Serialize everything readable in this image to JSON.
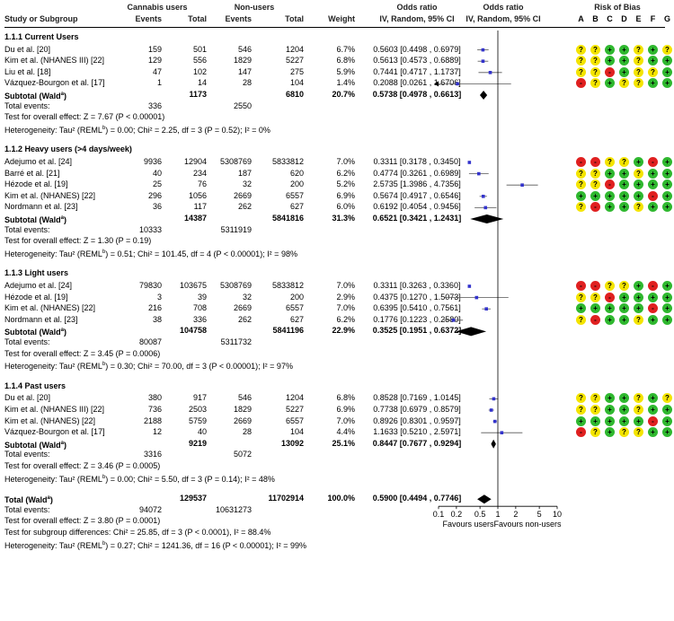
{
  "header": {
    "group_cannabis": "Cannabis users",
    "group_non": "Non-users",
    "col_study": "Study or Subgroup",
    "col_events1": "Events",
    "col_total1": "Total",
    "col_events2": "Events",
    "col_total2": "Total",
    "col_weight": "Weight",
    "col_or": "Odds ratio",
    "col_or_sub": "IV, Random, 95% CI",
    "col_forest": "Odds ratio",
    "col_forest_sub": "IV, Random, 95% CI",
    "col_rob": "Risk of Bias",
    "rob_letters": [
      "A",
      "B",
      "C",
      "D",
      "E",
      "F",
      "G"
    ]
  },
  "colors": {
    "point": "#3333cc",
    "yellow": "#f4e400",
    "green": "#2fb82f",
    "red": "#e02020"
  },
  "chart_data": {
    "type": "forest",
    "axis": {
      "scale": "log",
      "xlim": [
        0.1,
        10
      ],
      "ticks": [
        "0.1",
        "0.2",
        "0.5",
        "1",
        "2",
        "5",
        "10"
      ],
      "tick_values": [
        0.1,
        0.2,
        0.5,
        1,
        2,
        5,
        10
      ],
      "label_left": "Favours users",
      "label_right": "Favours non-users"
    },
    "groups": [
      {
        "title": "1.1.1 Current Users",
        "studies": [
          {
            "name": "Du et al. [20]",
            "e1": "159",
            "t1": "501",
            "e2": "546",
            "t2": "1204",
            "weight": "6.7%",
            "ci_text": "0.5603 [0.4498 , 0.6979]",
            "or": 0.5603,
            "lo": 0.4498,
            "hi": 0.6979,
            "rob": [
              "?",
              "?",
              "+",
              "+",
              "?",
              "+",
              "?"
            ]
          },
          {
            "name": "Kim et al. (NHANES III) [22]",
            "e1": "129",
            "t1": "556",
            "e2": "1829",
            "t2": "5227",
            "weight": "6.8%",
            "ci_text": "0.5613 [0.4573 , 0.6889]",
            "or": 0.5613,
            "lo": 0.4573,
            "hi": 0.6889,
            "rob": [
              "?",
              "?",
              "+",
              "+",
              "?",
              "+",
              "+"
            ]
          },
          {
            "name": "Liu et al. [18]",
            "e1": "47",
            "t1": "102",
            "e2": "147",
            "t2": "275",
            "weight": "5.9%",
            "ci_text": "0.7441 [0.4717 , 1.1737]",
            "or": 0.7441,
            "lo": 0.4717,
            "hi": 1.1737,
            "rob": [
              "?",
              "?",
              "-",
              "+",
              "?",
              "?",
              "+"
            ]
          },
          {
            "name": "Vázquez-Bourgon et al. [17]",
            "e1": "1",
            "t1": "14",
            "e2": "28",
            "t2": "104",
            "weight": "1.4%",
            "ci_text": "0.2088 [0.0261 , 1.6706]",
            "or": 0.2088,
            "lo": 0.0261,
            "hi": 1.6706,
            "rob": [
              "-",
              "?",
              "+",
              "?",
              "?",
              "+",
              "+"
            ]
          }
        ],
        "subtotal": {
          "label": "Subtotal (Wald",
          "sup": "a",
          "t1": "1173",
          "t2": "6810",
          "weight": "20.7%",
          "ci_text": "0.5738 [0.4978 , 0.6613]",
          "or": 0.5738,
          "lo": 0.4978,
          "hi": 0.6613
        },
        "total_events_label": "Total events:",
        "total_events": [
          "336",
          "2550"
        ],
        "test_line": "Test for overall effect: Z = 7.67 (P < 0.00001)",
        "het_pre": "Heterogeneity: Tau² (REML",
        "het_sup": "b",
        "het_post": ") = 0.00; Chi² = 2.25, df = 3 (P = 0.52); I² = 0%"
      },
      {
        "title": "1.1.2 Heavy users (>4 days/week)",
        "studies": [
          {
            "name": "Adejumo et al. [24]",
            "e1": "9936",
            "t1": "12904",
            "e2": "5308769",
            "t2": "5833812",
            "weight": "7.0%",
            "ci_text": "0.3311 [0.3178 , 0.3450]",
            "or": 0.3311,
            "lo": 0.3178,
            "hi": 0.345,
            "rob": [
              "-",
              "-",
              "?",
              "?",
              "+",
              "-",
              "+"
            ]
          },
          {
            "name": "Barré et al. [21]",
            "e1": "40",
            "t1": "234",
            "e2": "187",
            "t2": "620",
            "weight": "6.2%",
            "ci_text": "0.4774 [0.3261 , 0.6989]",
            "or": 0.4774,
            "lo": 0.3261,
            "hi": 0.6989,
            "rob": [
              "?",
              "?",
              "+",
              "+",
              "?",
              "+",
              "+"
            ]
          },
          {
            "name": "Hézode et al. [19]",
            "e1": "25",
            "t1": "76",
            "e2": "32",
            "t2": "200",
            "weight": "5.2%",
            "ci_text": "2.5735 [1.3986 , 4.7356]",
            "or": 2.5735,
            "lo": 1.3986,
            "hi": 4.7356,
            "rob": [
              "?",
              "?",
              "-",
              "+",
              "+",
              "+",
              "+"
            ]
          },
          {
            "name": "Kim et al. (NHANES) [22]",
            "e1": "296",
            "t1": "1056",
            "e2": "2669",
            "t2": "6557",
            "weight": "6.9%",
            "ci_text": "0.5674 [0.4917 , 0.6546]",
            "or": 0.5674,
            "lo": 0.4917,
            "hi": 0.6546,
            "rob": [
              "+",
              "+",
              "+",
              "+",
              "+",
              "-",
              "+"
            ]
          },
          {
            "name": "Nordmann et al. [23]",
            "e1": "36",
            "t1": "117",
            "e2": "262",
            "t2": "627",
            "weight": "6.0%",
            "ci_text": "0.6192 [0.4054 , 0.9456]",
            "or": 0.6192,
            "lo": 0.4054,
            "hi": 0.9456,
            "rob": [
              "?",
              "-",
              "+",
              "+",
              "?",
              "+",
              "+"
            ]
          }
        ],
        "subtotal": {
          "label": "Subtotal (Wald",
          "sup": "a",
          "t1": "14387",
          "t2": "5841816",
          "weight": "31.3%",
          "ci_text": "0.6521 [0.3421 , 1.2431]",
          "or": 0.6521,
          "lo": 0.3421,
          "hi": 1.2431
        },
        "total_events_label": "Total events:",
        "total_events": [
          "10333",
          "5311919"
        ],
        "test_line": "Test for overall effect: Z = 1.30 (P = 0.19)",
        "het_pre": "Heterogeneity: Tau² (REML",
        "het_sup": "b",
        "het_post": ") = 0.51; Chi² = 101.45, df = 4 (P < 0.00001); I² = 98%"
      },
      {
        "title": "1.1.3 Light users",
        "studies": [
          {
            "name": "Adejumo et al. [24]",
            "e1": "79830",
            "t1": "103675",
            "e2": "5308769",
            "t2": "5833812",
            "weight": "7.0%",
            "ci_text": "0.3311 [0.3263 , 0.3360]",
            "or": 0.3311,
            "lo": 0.3263,
            "hi": 0.336,
            "rob": [
              "-",
              "-",
              "?",
              "?",
              "+",
              "-",
              "+"
            ]
          },
          {
            "name": "Hézode et al. [19]",
            "e1": "3",
            "t1": "39",
            "e2": "32",
            "t2": "200",
            "weight": "2.9%",
            "ci_text": "0.4375 [0.1270 , 1.5073]",
            "or": 0.4375,
            "lo": 0.127,
            "hi": 1.5073,
            "rob": [
              "?",
              "?",
              "-",
              "+",
              "+",
              "+",
              "+"
            ]
          },
          {
            "name": "Kim et al. (NHANES) [22]",
            "e1": "216",
            "t1": "708",
            "e2": "2669",
            "t2": "6557",
            "weight": "7.0%",
            "ci_text": "0.6395 [0.5410 , 0.7561]",
            "or": 0.6395,
            "lo": 0.541,
            "hi": 0.7561,
            "rob": [
              "+",
              "+",
              "+",
              "+",
              "+",
              "-",
              "+"
            ]
          },
          {
            "name": "Nordmann et al. [23]",
            "e1": "38",
            "t1": "336",
            "e2": "262",
            "t2": "627",
            "weight": "6.2%",
            "ci_text": "0.1776 [0.1223 , 0.2580]",
            "or": 0.1776,
            "lo": 0.1223,
            "hi": 0.258,
            "rob": [
              "?",
              "-",
              "+",
              "+",
              "?",
              "+",
              "+"
            ]
          }
        ],
        "subtotal": {
          "label": "Subtotal (Wald",
          "sup": "a",
          "t1": "104758",
          "t2": "5841196",
          "weight": "22.9%",
          "ci_text": "0.3525 [0.1951 , 0.6372]",
          "or": 0.3525,
          "lo": 0.1951,
          "hi": 0.6372
        },
        "total_events_label": "Total events:",
        "total_events": [
          "80087",
          "5311732"
        ],
        "test_line": "Test for overall effect: Z = 3.45 (P = 0.0006)",
        "het_pre": "Heterogeneity: Tau² (REML",
        "het_sup": "b",
        "het_post": ") = 0.30; Chi² = 70.00, df = 3 (P < 0.00001); I² = 97%"
      },
      {
        "title": "1.1.4 Past users",
        "studies": [
          {
            "name": "Du et al. [20]",
            "e1": "380",
            "t1": "917",
            "e2": "546",
            "t2": "1204",
            "weight": "6.8%",
            "ci_text": "0.8528 [0.7169 , 1.0145]",
            "or": 0.8528,
            "lo": 0.7169,
            "hi": 1.0145,
            "rob": [
              "?",
              "?",
              "+",
              "+",
              "?",
              "+",
              "?"
            ]
          },
          {
            "name": "Kim et al. (NHANES III) [22]",
            "e1": "736",
            "t1": "2503",
            "e2": "1829",
            "t2": "5227",
            "weight": "6.9%",
            "ci_text": "0.7738 [0.6979 , 0.8579]",
            "or": 0.7738,
            "lo": 0.6979,
            "hi": 0.8579,
            "rob": [
              "?",
              "?",
              "+",
              "+",
              "?",
              "+",
              "+"
            ]
          },
          {
            "name": "Kim et al. (NHANES) [22]",
            "e1": "2188",
            "t1": "5759",
            "e2": "2669",
            "t2": "6557",
            "weight": "7.0%",
            "ci_text": "0.8926 [0.8301 , 0.9597]",
            "or": 0.8926,
            "lo": 0.8301,
            "hi": 0.9597,
            "rob": [
              "+",
              "+",
              "+",
              "+",
              "+",
              "-",
              "+"
            ]
          },
          {
            "name": "Vázquez-Bourgon et al. [17]",
            "e1": "12",
            "t1": "40",
            "e2": "28",
            "t2": "104",
            "weight": "4.4%",
            "ci_text": "1.1633 [0.5210 , 2.5971]",
            "or": 1.1633,
            "lo": 0.521,
            "hi": 2.5971,
            "rob": [
              "-",
              "?",
              "+",
              "?",
              "?",
              "+",
              "+"
            ]
          }
        ],
        "subtotal": {
          "label": "Subtotal (Wald",
          "sup": "a",
          "t1": "9219",
          "t2": "13092",
          "weight": "25.1%",
          "ci_text": "0.8447 [0.7677 , 0.9294]",
          "or": 0.8447,
          "lo": 0.7677,
          "hi": 0.9294
        },
        "total_events_label": "Total events:",
        "total_events": [
          "3316",
          "5072"
        ],
        "test_line": "Test for overall effect: Z = 3.46 (P = 0.0005)",
        "het_pre": "Heterogeneity: Tau² (REML",
        "het_sup": "b",
        "het_post": ") = 0.00; Chi² = 5.50, df = 3 (P = 0.14); I² = 48%"
      }
    ],
    "overall": {
      "label": "Total (Wald",
      "sup": "a",
      "t1": "129537",
      "t2": "11702914",
      "weight": "100.0%",
      "ci_text": "0.5900 [0.4494 , 0.7746]",
      "or": 0.59,
      "lo": 0.4494,
      "hi": 0.7746,
      "total_events_label": "Total events:",
      "total_events": [
        "94072",
        "10631273"
      ],
      "test_line": "Test for overall effect: Z = 3.80 (P = 0.0001)",
      "subgroup_line": "Test for subgroup differences: Chi² = 25.85, df = 3 (P < 0.0001), I² = 88.4%",
      "het_pre": "Heterogeneity: Tau² (REML",
      "het_sup": "b",
      "het_post": ") = 0.27; Chi² = 1241.36, df = 16 (P < 0.00001); I² = 99%"
    }
  }
}
